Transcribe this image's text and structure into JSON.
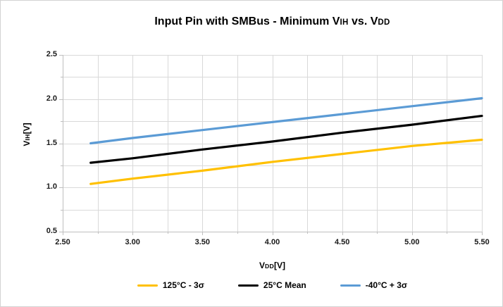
{
  "frame": {
    "background": "#ffffff",
    "border_color": "#d3d3d3"
  },
  "title": {
    "prefix": "Input Pin with SMBus - Minimum V",
    "sub1": "IH",
    "middle": " vs. V",
    "sub2": "DD"
  },
  "y_axis": {
    "title_prefix": "V",
    "title_sub": "IH",
    "title_suffix": "[V]",
    "tick_labels": [
      "2.5",
      "2.0",
      "1.5",
      "1.0",
      "0.5"
    ]
  },
  "x_axis": {
    "title_prefix": "V",
    "title_sub": "DD",
    "title_suffix": "[V]",
    "tick_labels": [
      "2.50",
      "3.00",
      "3.50",
      "4.00",
      "4.50",
      "5.00",
      "5.50"
    ]
  },
  "legend": {
    "items": [
      {
        "label": "125°C - 3σ",
        "color": "#FFC000"
      },
      {
        "label": "25°C Mean",
        "color": "#000000"
      },
      {
        "label": "-40°C + 3σ",
        "color": "#5B9BD5"
      }
    ]
  },
  "chart_data": {
    "type": "line",
    "title": "Input Pin with SMBus - Minimum VIH vs. VDD",
    "xlabel": "VDD[V]",
    "ylabel": "VIH[V]",
    "xlim": [
      2.5,
      5.5
    ],
    "ylim": [
      0.5,
      2.5
    ],
    "x_tick_step": 0.5,
    "y_tick_step": 0.5,
    "grid_step": 0.25,
    "grid": true,
    "legend_position": "bottom",
    "x": [
      2.7,
      3.0,
      3.5,
      4.0,
      4.5,
      5.0,
      5.5
    ],
    "series": [
      {
        "name": "125°C - 3σ",
        "color": "#FFC000",
        "values": [
          1.04,
          1.1,
          1.19,
          1.29,
          1.38,
          1.47,
          1.54
        ]
      },
      {
        "name": "25°C Mean",
        "color": "#000000",
        "values": [
          1.28,
          1.33,
          1.43,
          1.52,
          1.62,
          1.71,
          1.81
        ]
      },
      {
        "name": "-40°C + 3σ",
        "color": "#5B9BD5",
        "values": [
          1.5,
          1.56,
          1.65,
          1.74,
          1.83,
          1.92,
          2.01
        ]
      }
    ],
    "colors": {
      "gridline": "#D9D9D9",
      "axis_line": "#BFBFBF",
      "tick_text": "#1a1a1a"
    }
  }
}
